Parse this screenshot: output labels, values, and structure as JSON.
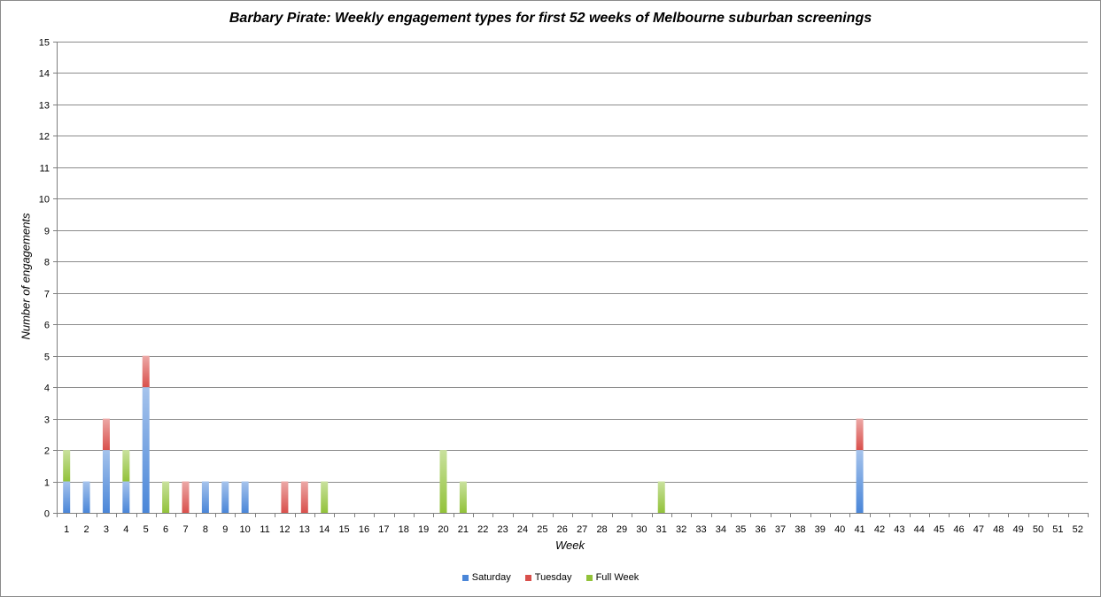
{
  "chart_data": {
    "type": "bar",
    "stacked": true,
    "title": "Barbary Pirate: Weekly engagement types for first 52 weeks of Melbourne suburban screenings",
    "xlabel": "Week",
    "ylabel": "Number of engagements",
    "ylim": [
      0,
      15
    ],
    "yticks": [
      0,
      1,
      2,
      3,
      4,
      5,
      6,
      7,
      8,
      9,
      10,
      11,
      12,
      13,
      14,
      15
    ],
    "grid": true,
    "legend_position": "bottom",
    "categories": [
      "1",
      "2",
      "3",
      "4",
      "5",
      "6",
      "7",
      "8",
      "9",
      "10",
      "11",
      "12",
      "13",
      "14",
      "15",
      "16",
      "17",
      "18",
      "19",
      "20",
      "21",
      "22",
      "23",
      "24",
      "25",
      "26",
      "27",
      "28",
      "29",
      "30",
      "31",
      "32",
      "33",
      "34",
      "35",
      "36",
      "37",
      "38",
      "39",
      "40",
      "41",
      "42",
      "43",
      "44",
      "45",
      "46",
      "47",
      "48",
      "49",
      "50",
      "51",
      "52"
    ],
    "series": [
      {
        "name": "Saturday",
        "color": "#4a86d8",
        "values": [
          1,
          1,
          2,
          1,
          4,
          0,
          0,
          1,
          1,
          1,
          0,
          0,
          0,
          0,
          0,
          0,
          0,
          0,
          0,
          0,
          0,
          0,
          0,
          0,
          0,
          0,
          0,
          0,
          0,
          0,
          0,
          0,
          0,
          0,
          0,
          0,
          0,
          0,
          0,
          0,
          2,
          0,
          0,
          0,
          0,
          0,
          0,
          0,
          0,
          0,
          0,
          0
        ]
      },
      {
        "name": "Tuesday",
        "color": "#d9504c",
        "values": [
          0,
          0,
          1,
          0,
          1,
          0,
          1,
          0,
          0,
          0,
          0,
          1,
          1,
          0,
          0,
          0,
          0,
          0,
          0,
          0,
          0,
          0,
          0,
          0,
          0,
          0,
          0,
          0,
          0,
          0,
          0,
          0,
          0,
          0,
          0,
          0,
          0,
          0,
          0,
          0,
          1,
          0,
          0,
          0,
          0,
          0,
          0,
          0,
          0,
          0,
          0,
          0
        ]
      },
      {
        "name": "Full Week",
        "color": "#92c23a",
        "values": [
          1,
          0,
          0,
          1,
          0,
          1,
          0,
          0,
          0,
          0,
          0,
          0,
          0,
          1,
          0,
          0,
          0,
          0,
          0,
          2,
          1,
          0,
          0,
          0,
          0,
          0,
          0,
          0,
          0,
          0,
          1,
          0,
          0,
          0,
          0,
          0,
          0,
          0,
          0,
          0,
          0,
          0,
          0,
          0,
          0,
          0,
          0,
          0,
          0,
          0,
          0,
          0
        ]
      }
    ]
  }
}
